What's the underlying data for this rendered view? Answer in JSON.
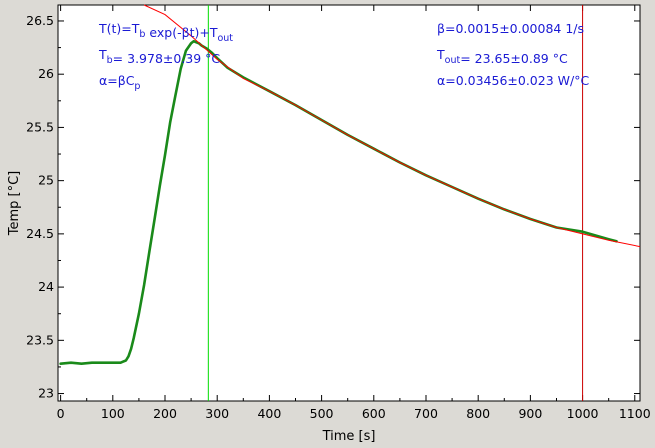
{
  "chart_data": {
    "type": "scatter",
    "xlabel": "Time [s]",
    "ylabel": "Temp [°C]",
    "xlim": [
      -5,
      1110
    ],
    "ylim": [
      22.93,
      26.65
    ],
    "xticks": [
      "0",
      "100",
      "200",
      "300",
      "400",
      "500",
      "600",
      "700",
      "800",
      "900",
      "1000",
      "1100"
    ],
    "yticks": [
      "23",
      "23.5",
      "24",
      "24.5",
      "25",
      "25.5",
      "26",
      "26.5"
    ],
    "grid": false,
    "series": [
      {
        "color": "#1a8a1a",
        "style": "dense-points",
        "x": [
          0,
          20,
          40,
          60,
          80,
          100,
          115,
          120,
          125,
          130,
          135,
          140,
          150,
          160,
          170,
          180,
          190,
          200,
          210,
          220,
          230,
          240,
          250,
          255,
          260,
          265,
          270,
          280,
          290,
          300,
          320,
          350,
          400,
          450,
          500,
          550,
          600,
          650,
          700,
          750,
          800,
          850,
          900,
          950,
          1000,
          1050,
          1065
        ],
        "y": [
          23.28,
          23.29,
          23.28,
          23.29,
          23.29,
          23.29,
          23.29,
          23.3,
          23.31,
          23.35,
          23.42,
          23.52,
          23.75,
          24.02,
          24.33,
          24.64,
          24.95,
          25.24,
          25.55,
          25.8,
          26.05,
          26.22,
          26.29,
          26.31,
          26.3,
          26.29,
          26.27,
          26.24,
          26.2,
          26.15,
          26.06,
          25.97,
          25.84,
          25.71,
          25.57,
          25.43,
          25.3,
          25.17,
          25.05,
          24.94,
          24.83,
          24.73,
          24.64,
          24.56,
          24.52,
          24.45,
          24.43
        ]
      },
      {
        "color": "#ff0000",
        "style": "line",
        "x": [
          160,
          200,
          250,
          300,
          350,
          400,
          450,
          500,
          550,
          600,
          650,
          700,
          750,
          800,
          850,
          900,
          950,
          1000,
          1050,
          1110
        ],
        "y": [
          26.65,
          26.56,
          26.36,
          26.14,
          25.96,
          25.84,
          25.71,
          25.57,
          25.43,
          25.3,
          25.17,
          25.05,
          24.94,
          24.83,
          24.73,
          24.64,
          24.56,
          24.5,
          24.44,
          24.38
        ]
      }
    ],
    "vlines": [
      {
        "x": 283,
        "color": "#00dd00"
      },
      {
        "x": 1000,
        "color": "#cc0000"
      }
    ],
    "annotations_left": [
      {
        "main": "T(t)=T",
        "sub1": "b",
        "mid": " exp(-βt)+T",
        "sub2": "out",
        "tail": ""
      },
      {
        "main": "T",
        "sub1": "b",
        "mid": "= 3.978±0.39 °C",
        "sub2": "",
        "tail": ""
      },
      {
        "main": "α=βC",
        "sub1": "p",
        "mid": "",
        "sub2": "",
        "tail": ""
      }
    ],
    "annotations_right": [
      {
        "main": "β=0.0015±0.00084 1/s",
        "sub1": "",
        "mid": "",
        "sub2": "",
        "tail": ""
      },
      {
        "main": "T",
        "sub1": "out",
        "mid": "= 23.65±0.89 °C",
        "sub2": "",
        "tail": ""
      },
      {
        "main": "α=0.03456±0.023 W/°C",
        "sub1": "",
        "mid": "",
        "sub2": "",
        "tail": ""
      }
    ],
    "annotation_color": "#1a1ad4"
  }
}
